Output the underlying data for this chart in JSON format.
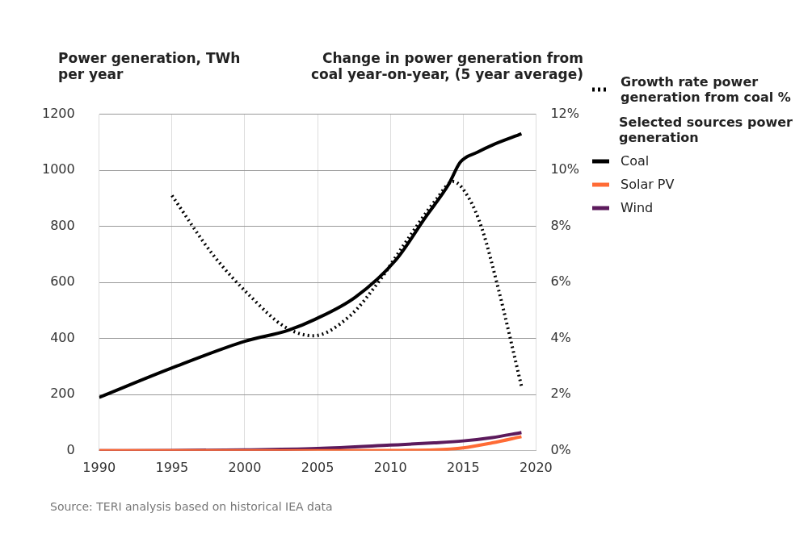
{
  "chart_data": {
    "type": "line",
    "ylabel": "Power generation, TWh per year",
    "y2label": "Change in power generation from coal year-on-year, (5 year average)",
    "legend_title": "Selected sources power generation",
    "legend": "right",
    "grid": true,
    "marker": "none",
    "xlim": [
      1990,
      2020
    ],
    "xticks": [
      1990,
      1995,
      2000,
      2005,
      2010,
      2015,
      2020
    ],
    "ylim": [
      0,
      1200
    ],
    "yticks": [
      0,
      200,
      400,
      600,
      800,
      1000,
      1200
    ],
    "y2lim": [
      0,
      12
    ],
    "y2ticks": [
      {
        "value": 0,
        "label": "0%"
      },
      {
        "value": 2,
        "label": "2%"
      },
      {
        "value": 4,
        "label": "4%"
      },
      {
        "value": 6,
        "label": "6%"
      },
      {
        "value": 8,
        "label": "8%"
      },
      {
        "value": 10,
        "label": "10%"
      },
      {
        "value": 12,
        "label": "12%"
      }
    ],
    "series": [
      {
        "name": "Growth rate power generation from coal %",
        "color": "#000000",
        "axis": "y2",
        "line_style": "dotted",
        "x": [
          1995,
          1997.8,
          2000.4,
          2002.8,
          2004.7,
          2007.2,
          2009.3,
          2011,
          2013.2,
          2014.3,
          2015.4,
          2016.3,
          2017.4,
          2019
        ],
        "values": [
          9.1,
          7.0,
          5.5,
          4.4,
          4.1,
          4.8,
          6.1,
          7.4,
          9.0,
          9.6,
          9.0,
          7.9,
          5.8,
          2.3
        ]
      },
      {
        "name": "Coal",
        "color": "#000000",
        "x": [
          1990,
          1995,
          2000,
          2003,
          2004.8,
          2007.6,
          2010.4,
          2012.4,
          2014,
          2014.8,
          2016,
          2017,
          2019
        ],
        "values": [
          190,
          295,
          390,
          430,
          468,
          548,
          682,
          832,
          950,
          1029,
          1065,
          1090,
          1130
        ]
      },
      {
        "name": "Solar PV",
        "color": "#ff6b35",
        "x": [
          1990,
          2000,
          2005,
          2010,
          2013,
          2015,
          2017,
          2019
        ],
        "values": [
          0,
          0,
          0,
          1,
          3,
          10,
          28,
          50
        ]
      },
      {
        "name": "Wind",
        "color": "#5c1a5c",
        "x": [
          1990,
          1995,
          2000,
          2005,
          2010,
          2013,
          2015,
          2017,
          2019
        ],
        "values": [
          0,
          1,
          3,
          8,
          20,
          28,
          35,
          47,
          65
        ]
      }
    ],
    "annotations": [
      "Source: TERI analysis based on historical IEA data"
    ]
  }
}
